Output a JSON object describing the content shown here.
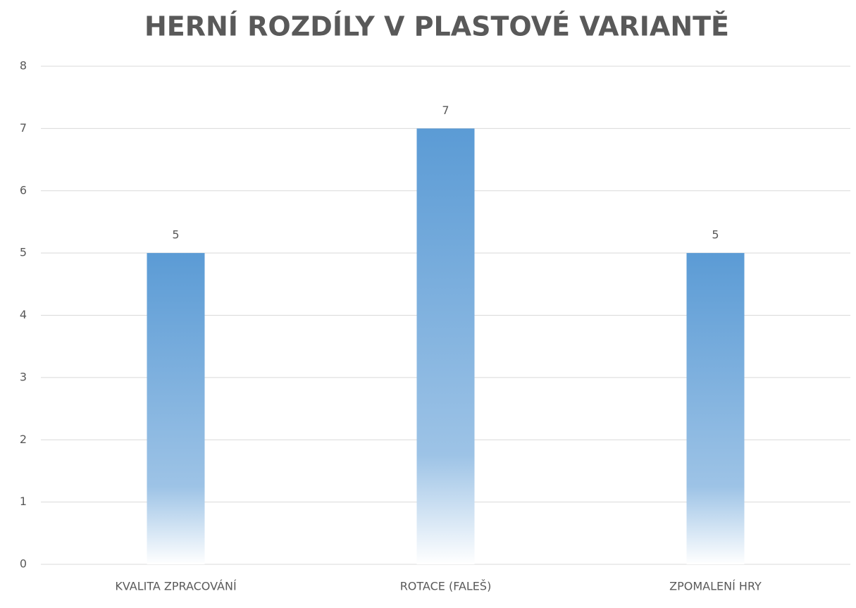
{
  "chart_data": {
    "type": "bar",
    "title": "HERNÍ ROZDÍLY V PLASTOVÉ VARIANTĚ",
    "categories": [
      "KVALITA ZPRACOVÁNÍ",
      "ROTACE (FALEŠ)",
      "ZPOMALENÍ HRY"
    ],
    "values": [
      5,
      7,
      5
    ],
    "color": "#5b9bd5",
    "ylim": [
      0,
      8
    ],
    "yticks": [
      0,
      1,
      2,
      3,
      4,
      5,
      6,
      7,
      8
    ],
    "grid": true
  }
}
